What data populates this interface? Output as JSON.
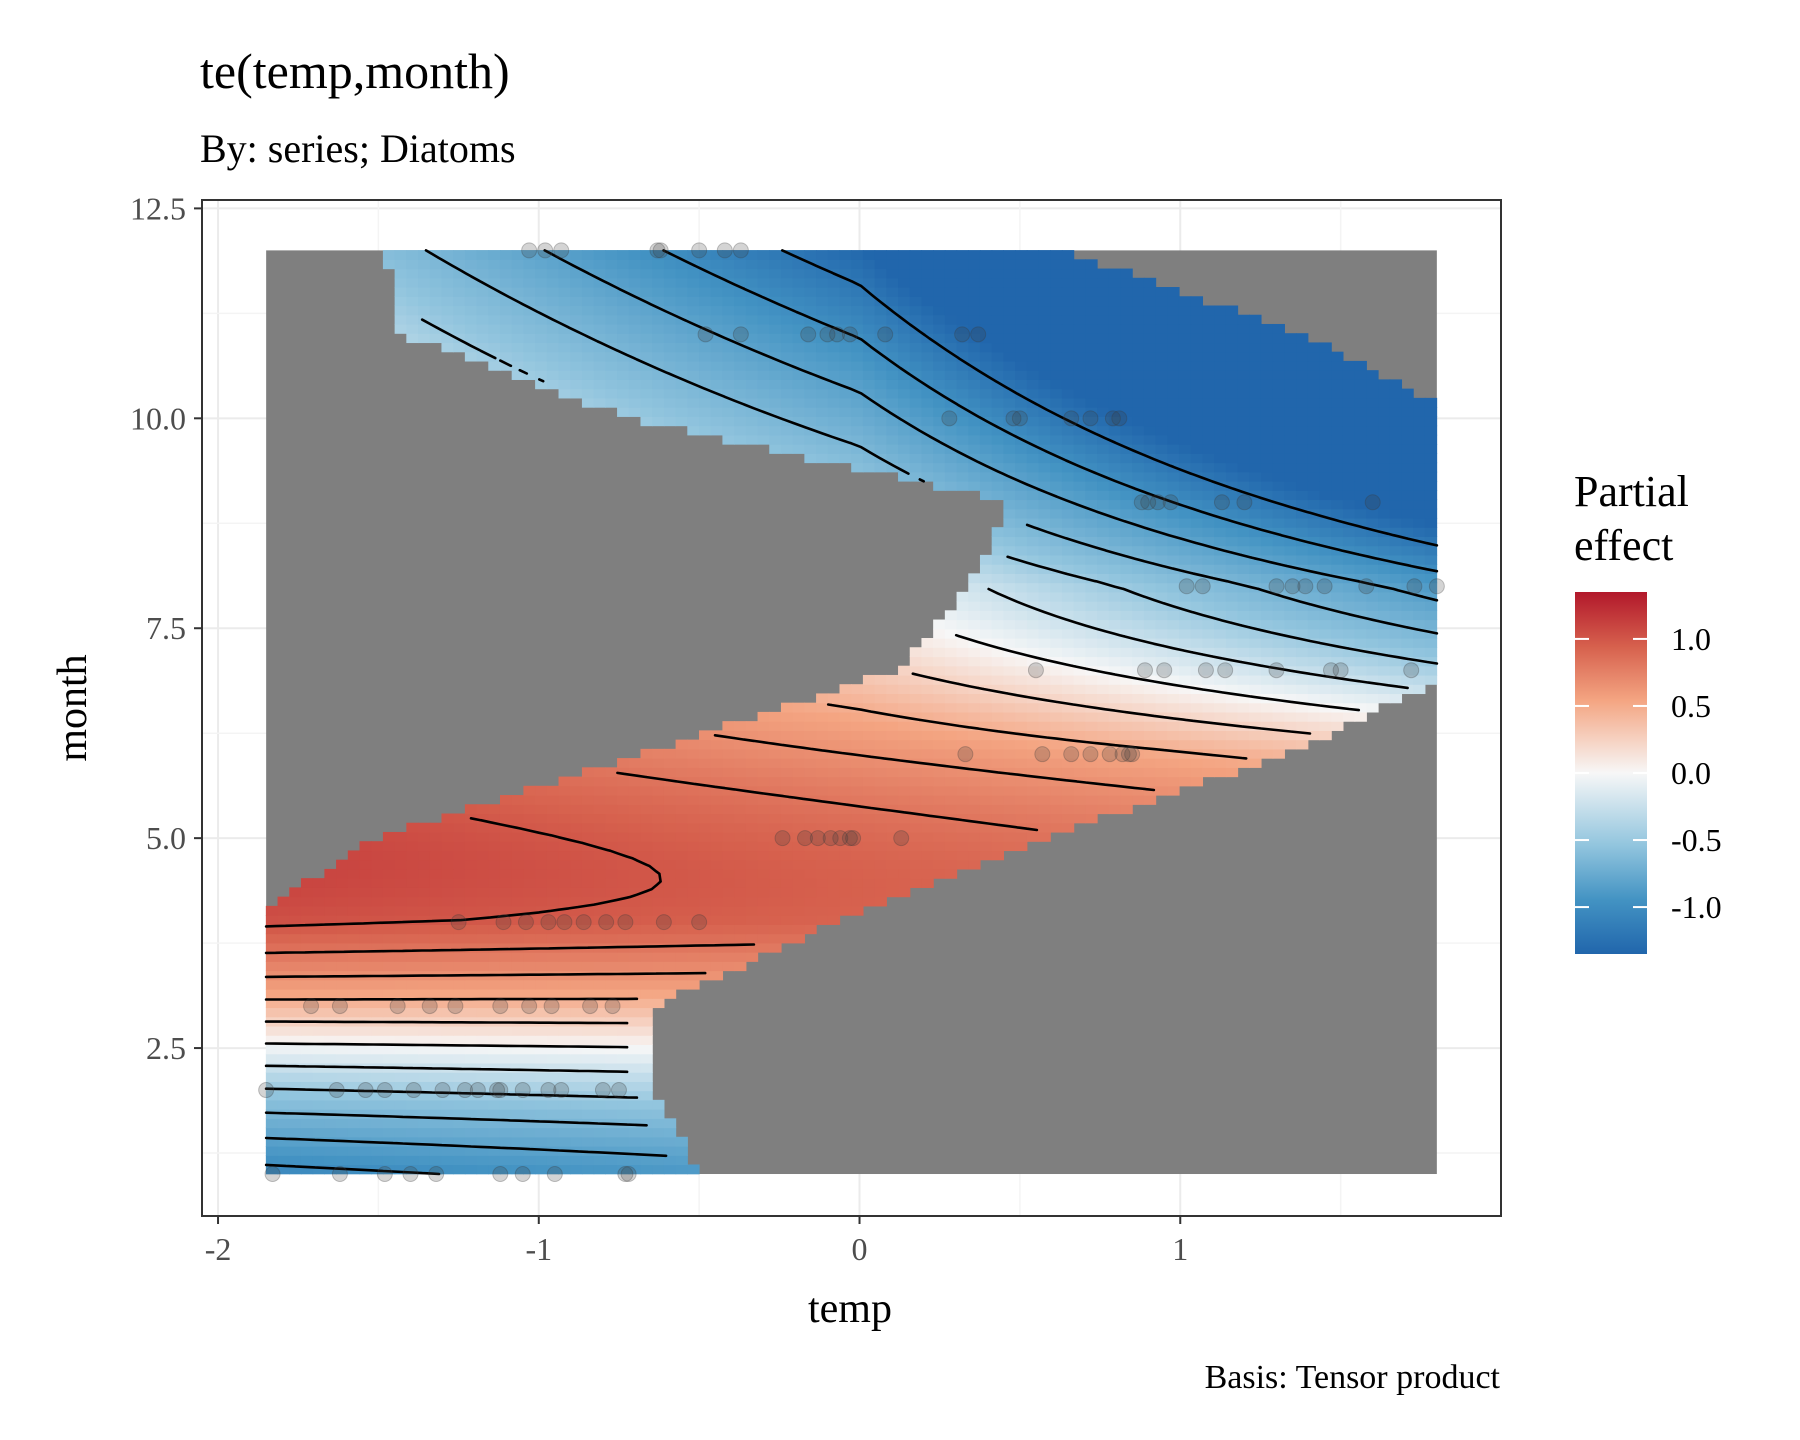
{
  "chart_data": {
    "type": "heatmap",
    "title": "te(temp,month)",
    "subtitle": "By: series; Diatoms",
    "xlabel": "temp",
    "ylabel": "month",
    "caption": "Basis: Tensor product",
    "xlim": [
      -2.05,
      2.0
    ],
    "ylim": [
      0.5,
      12.6
    ],
    "x_ticks": [
      -2,
      -1,
      0,
      1
    ],
    "x_tick_labels": [
      "-2",
      "-1",
      "0",
      "1"
    ],
    "y_ticks": [
      2.5,
      5.0,
      7.5,
      10.0,
      12.5
    ],
    "y_tick_labels": [
      "2.5",
      "5.0",
      "7.5",
      "10.0",
      "12.5"
    ],
    "grid": true,
    "legend": {
      "title_lines": [
        "Partial",
        "effect"
      ],
      "placement": "right",
      "ticks": [
        1.0,
        0.5,
        0.0,
        -0.5,
        -1.0
      ],
      "tick_labels": [
        "1.0",
        "0.5",
        "0.0",
        "-0.5",
        "-1.0"
      ],
      "range": [
        -1.35,
        1.35
      ],
      "colors": {
        "high": "#b2182b",
        "mid": "#f7f7f7",
        "low": "#2166ac"
      }
    },
    "na_color": "#7f7f7f",
    "grid_extent": {
      "x": [
        -1.85,
        1.8
      ],
      "y": [
        1.0,
        12.0
      ]
    },
    "surface_model": "partial effect ≈ 1.35 - 0.09·(month-1)² + 0.56·temp·(month-6.5)/5.5·(-1) - 0.15·temp - 0.04·temp·(month-1) (approximate, rendered where data exist)",
    "data_rows": [
      {
        "month": 1,
        "temp_range": [
          -1.85,
          -0.58
        ]
      },
      {
        "month": 2,
        "temp_range": [
          -1.85,
          -0.72
        ]
      },
      {
        "month": 3,
        "temp_range": [
          -1.85,
          -0.72
        ]
      },
      {
        "month": 4,
        "temp_range": [
          -1.85,
          -0.15
        ]
      },
      {
        "month": 5,
        "temp_range": [
          -1.42,
          0.5
        ]
      },
      {
        "month": 6,
        "temp_range": [
          -0.6,
          1.25
        ]
      },
      {
        "month": 7,
        "temp_range": [
          0.2,
          1.8
        ]
      },
      {
        "month": 8,
        "temp_range": [
          0.42,
          1.8
        ]
      },
      {
        "month": 9,
        "temp_range": [
          0.55,
          1.8
        ]
      },
      {
        "month": 10,
        "temp_range": [
          -0.64,
          1.8
        ]
      },
      {
        "month": 11,
        "temp_range": [
          -1.35,
          1.3
        ]
      },
      {
        "month": 12,
        "temp_range": [
          -1.4,
          0.55
        ]
      }
    ],
    "points": [
      {
        "x": -1.83,
        "y": 1
      },
      {
        "x": -1.62,
        "y": 1
      },
      {
        "x": -1.48,
        "y": 1
      },
      {
        "x": -1.4,
        "y": 1
      },
      {
        "x": -1.32,
        "y": 1
      },
      {
        "x": -1.12,
        "y": 1
      },
      {
        "x": -1.05,
        "y": 1
      },
      {
        "x": -0.95,
        "y": 1
      },
      {
        "x": -0.73,
        "y": 1
      },
      {
        "x": -0.72,
        "y": 1
      },
      {
        "x": -1.85,
        "y": 2
      },
      {
        "x": -1.63,
        "y": 2
      },
      {
        "x": -1.54,
        "y": 2
      },
      {
        "x": -1.48,
        "y": 2
      },
      {
        "x": -1.39,
        "y": 2
      },
      {
        "x": -1.3,
        "y": 2
      },
      {
        "x": -1.23,
        "y": 2
      },
      {
        "x": -1.19,
        "y": 2
      },
      {
        "x": -1.13,
        "y": 2
      },
      {
        "x": -1.12,
        "y": 2
      },
      {
        "x": -1.05,
        "y": 2
      },
      {
        "x": -0.97,
        "y": 2
      },
      {
        "x": -0.93,
        "y": 2
      },
      {
        "x": -0.8,
        "y": 2
      },
      {
        "x": -0.75,
        "y": 2
      },
      {
        "x": -1.71,
        "y": 3
      },
      {
        "x": -1.62,
        "y": 3
      },
      {
        "x": -1.44,
        "y": 3
      },
      {
        "x": -1.34,
        "y": 3
      },
      {
        "x": -1.26,
        "y": 3
      },
      {
        "x": -1.12,
        "y": 3
      },
      {
        "x": -1.03,
        "y": 3
      },
      {
        "x": -0.96,
        "y": 3
      },
      {
        "x": -0.84,
        "y": 3
      },
      {
        "x": -0.77,
        "y": 3
      },
      {
        "x": -1.25,
        "y": 4
      },
      {
        "x": -1.11,
        "y": 4
      },
      {
        "x": -1.04,
        "y": 4
      },
      {
        "x": -0.97,
        "y": 4
      },
      {
        "x": -0.92,
        "y": 4
      },
      {
        "x": -0.86,
        "y": 4
      },
      {
        "x": -0.79,
        "y": 4
      },
      {
        "x": -0.73,
        "y": 4
      },
      {
        "x": -0.61,
        "y": 4
      },
      {
        "x": -0.5,
        "y": 4
      },
      {
        "x": -0.24,
        "y": 5
      },
      {
        "x": -0.17,
        "y": 5
      },
      {
        "x": -0.13,
        "y": 5
      },
      {
        "x": -0.09,
        "y": 5
      },
      {
        "x": -0.06,
        "y": 5
      },
      {
        "x": -0.03,
        "y": 5
      },
      {
        "x": -0.02,
        "y": 5
      },
      {
        "x": 0.13,
        "y": 5
      },
      {
        "x": 0.33,
        "y": 6
      },
      {
        "x": 0.57,
        "y": 6
      },
      {
        "x": 0.66,
        "y": 6
      },
      {
        "x": 0.72,
        "y": 6
      },
      {
        "x": 0.78,
        "y": 6
      },
      {
        "x": 0.82,
        "y": 6
      },
      {
        "x": 0.84,
        "y": 6
      },
      {
        "x": 0.85,
        "y": 6
      },
      {
        "x": 0.55,
        "y": 7
      },
      {
        "x": 0.89,
        "y": 7
      },
      {
        "x": 0.95,
        "y": 7
      },
      {
        "x": 1.08,
        "y": 7
      },
      {
        "x": 1.14,
        "y": 7
      },
      {
        "x": 1.3,
        "y": 7
      },
      {
        "x": 1.47,
        "y": 7
      },
      {
        "x": 1.5,
        "y": 7
      },
      {
        "x": 1.72,
        "y": 7
      },
      {
        "x": 1.02,
        "y": 8
      },
      {
        "x": 1.07,
        "y": 8
      },
      {
        "x": 1.3,
        "y": 8
      },
      {
        "x": 1.35,
        "y": 8
      },
      {
        "x": 1.39,
        "y": 8
      },
      {
        "x": 1.45,
        "y": 8
      },
      {
        "x": 1.58,
        "y": 8
      },
      {
        "x": 1.73,
        "y": 8
      },
      {
        "x": 1.8,
        "y": 8
      },
      {
        "x": 0.88,
        "y": 9
      },
      {
        "x": 0.9,
        "y": 9
      },
      {
        "x": 0.93,
        "y": 9
      },
      {
        "x": 0.97,
        "y": 9
      },
      {
        "x": 1.13,
        "y": 9
      },
      {
        "x": 1.2,
        "y": 9
      },
      {
        "x": 1.6,
        "y": 9
      },
      {
        "x": 0.28,
        "y": 10
      },
      {
        "x": 0.48,
        "y": 10
      },
      {
        "x": 0.5,
        "y": 10
      },
      {
        "x": 0.66,
        "y": 10
      },
      {
        "x": 0.72,
        "y": 10
      },
      {
        "x": 0.79,
        "y": 10
      },
      {
        "x": 0.81,
        "y": 10
      },
      {
        "x": -0.48,
        "y": 11
      },
      {
        "x": -0.37,
        "y": 11
      },
      {
        "x": -0.16,
        "y": 11
      },
      {
        "x": -0.1,
        "y": 11
      },
      {
        "x": -0.07,
        "y": 11
      },
      {
        "x": -0.03,
        "y": 11
      },
      {
        "x": 0.08,
        "y": 11
      },
      {
        "x": 0.32,
        "y": 11
      },
      {
        "x": 0.37,
        "y": 11
      },
      {
        "x": -1.03,
        "y": 12
      },
      {
        "x": -0.98,
        "y": 12
      },
      {
        "x": -0.93,
        "y": 12
      },
      {
        "x": -0.63,
        "y": 12
      },
      {
        "x": -0.62,
        "y": 12
      },
      {
        "x": -0.5,
        "y": 12
      },
      {
        "x": -0.42,
        "y": 12
      },
      {
        "x": -0.37,
        "y": 12
      }
    ]
  }
}
